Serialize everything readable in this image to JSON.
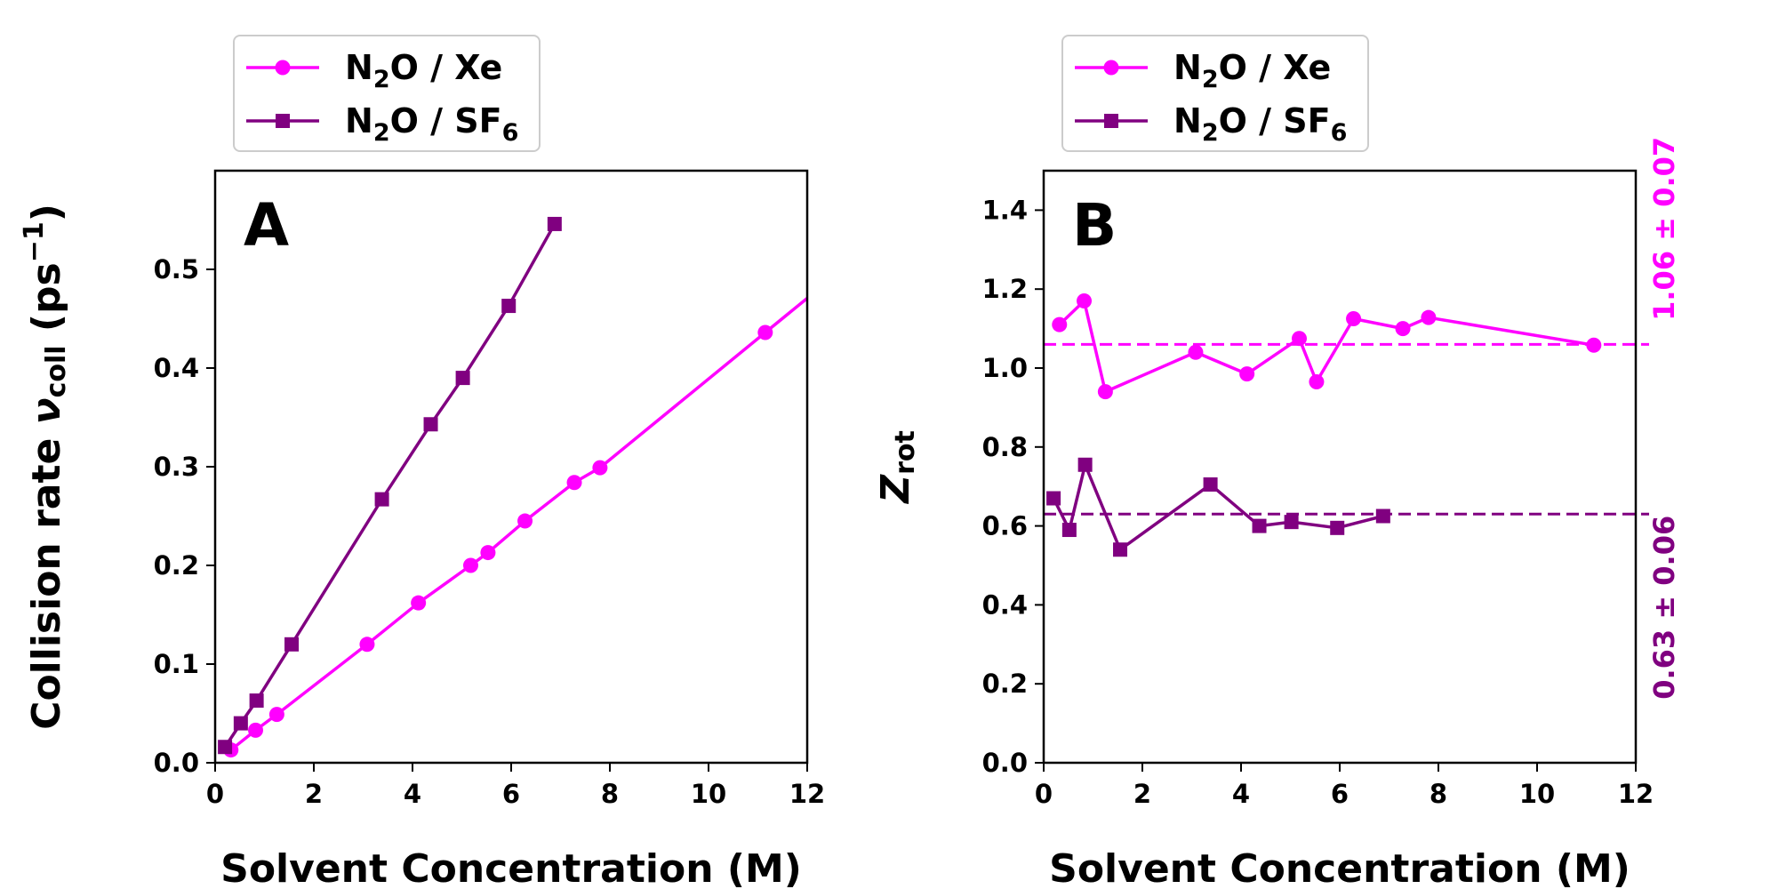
{
  "chart_data": [
    {
      "type": "line",
      "panel_label": "A",
      "xlabel": "Solvent Concentration (M)",
      "ylabel": {
        "main": "Collision rate ",
        "nu": "ν",
        "nu_sub": "coll",
        "unit_pre": " (ps",
        "unit_sup": "−1",
        "unit_post": ")"
      },
      "xlim": [
        0,
        12
      ],
      "ylim": [
        0,
        0.6
      ],
      "xticks": [
        "0",
        "2",
        "4",
        "6",
        "8",
        "10",
        "12"
      ],
      "yticks": [
        "0.0",
        "0.1",
        "0.2",
        "0.3",
        "0.4",
        "0.5"
      ],
      "legend_position": "above plot, left",
      "series": [
        {
          "name": "N2O / Xe",
          "legend": {
            "a": "N",
            "sub1": "2",
            "b": "O / Xe",
            "sub2": ""
          },
          "color": "#ff00ff",
          "marker": "circle",
          "extend_to_x": 12,
          "points": [
            [
              0.32,
              0.013
            ],
            [
              0.82,
              0.033
            ],
            [
              1.25,
              0.049
            ],
            [
              3.08,
              0.12
            ],
            [
              4.12,
              0.162
            ],
            [
              5.18,
              0.2
            ],
            [
              5.53,
              0.213
            ],
            [
              6.28,
              0.245
            ],
            [
              7.28,
              0.284
            ],
            [
              7.8,
              0.299
            ],
            [
              11.15,
              0.436
            ]
          ]
        },
        {
          "name": "N2O / SF6",
          "legend": {
            "a": "N",
            "sub1": "2",
            "b": "O / SF",
            "sub2": "6"
          },
          "color": "#800080",
          "marker": "square",
          "points": [
            [
              0.2,
              0.016
            ],
            [
              0.52,
              0.04
            ],
            [
              0.84,
              0.063
            ],
            [
              1.55,
              0.12
            ],
            [
              3.38,
              0.267
            ],
            [
              4.37,
              0.343
            ],
            [
              5.02,
              0.39
            ],
            [
              5.95,
              0.463
            ],
            [
              6.88,
              0.546
            ]
          ]
        }
      ]
    },
    {
      "type": "line",
      "panel_label": "B",
      "xlabel": "Solvent Concentration (M)",
      "ylabel": {
        "main": "Z",
        "sub": "rot"
      },
      "xlim": [
        0,
        12
      ],
      "ylim": [
        0,
        1.5
      ],
      "xticks": [
        "0",
        "2",
        "4",
        "6",
        "8",
        "10",
        "12"
      ],
      "yticks": [
        "0.0",
        "0.2",
        "0.4",
        "0.6",
        "0.8",
        "1.0",
        "1.2",
        "1.4"
      ],
      "legend_position": "above plot, left",
      "reference_lines": [
        {
          "y": 1.06,
          "color": "#ff00ff",
          "label": "1.06 ± 0.07"
        },
        {
          "y": 0.63,
          "color": "#800080",
          "label": "0.63 ± 0.06"
        }
      ],
      "series": [
        {
          "name": "N2O / Xe",
          "legend": {
            "a": "N",
            "sub1": "2",
            "b": "O / Xe",
            "sub2": ""
          },
          "color": "#ff00ff",
          "marker": "circle",
          "points": [
            [
              0.32,
              1.11
            ],
            [
              0.82,
              1.17
            ],
            [
              1.25,
              0.94
            ],
            [
              3.08,
              1.04
            ],
            [
              4.12,
              0.985
            ],
            [
              5.18,
              1.075
            ],
            [
              5.53,
              0.965
            ],
            [
              6.28,
              1.125
            ],
            [
              7.28,
              1.1
            ],
            [
              7.8,
              1.128
            ],
            [
              11.15,
              1.058
            ]
          ]
        },
        {
          "name": "N2O / SF6",
          "legend": {
            "a": "N",
            "sub1": "2",
            "b": "O / SF",
            "sub2": "6"
          },
          "color": "#800080",
          "marker": "square",
          "points": [
            [
              0.2,
              0.67
            ],
            [
              0.52,
              0.59
            ],
            [
              0.84,
              0.755
            ],
            [
              1.55,
              0.54
            ],
            [
              3.38,
              0.705
            ],
            [
              4.37,
              0.6
            ],
            [
              5.02,
              0.61
            ],
            [
              5.95,
              0.595
            ],
            [
              6.88,
              0.625
            ]
          ]
        }
      ]
    }
  ]
}
